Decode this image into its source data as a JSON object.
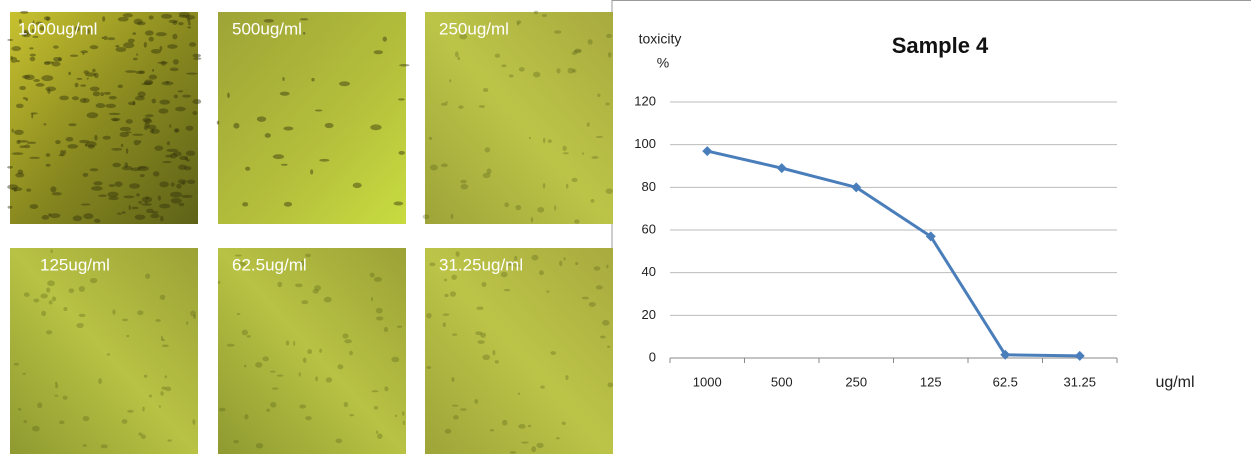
{
  "panels": [
    {
      "label": "1000ug/ml"
    },
    {
      "label": "500ug/ml"
    },
    {
      "label": "250ug/ml"
    },
    {
      "label": "125ug/ml"
    },
    {
      "label": "62.5ug/ml"
    },
    {
      "label": "31.25ug/ml"
    }
  ],
  "chart_data": {
    "type": "line",
    "title": "Sample 4",
    "ylabel": "toxicity",
    "yunit": "%",
    "xlabel": "ug/ml",
    "categories": [
      "1000",
      "500",
      "250",
      "125",
      "62.5",
      "31.25"
    ],
    "values": [
      97,
      89,
      80,
      57,
      1.5,
      1
    ],
    "color": "#4a7ebb",
    "ylim": [
      0,
      120
    ],
    "yticks": [
      0,
      20,
      40,
      60,
      80,
      100,
      120
    ],
    "grid": true
  }
}
